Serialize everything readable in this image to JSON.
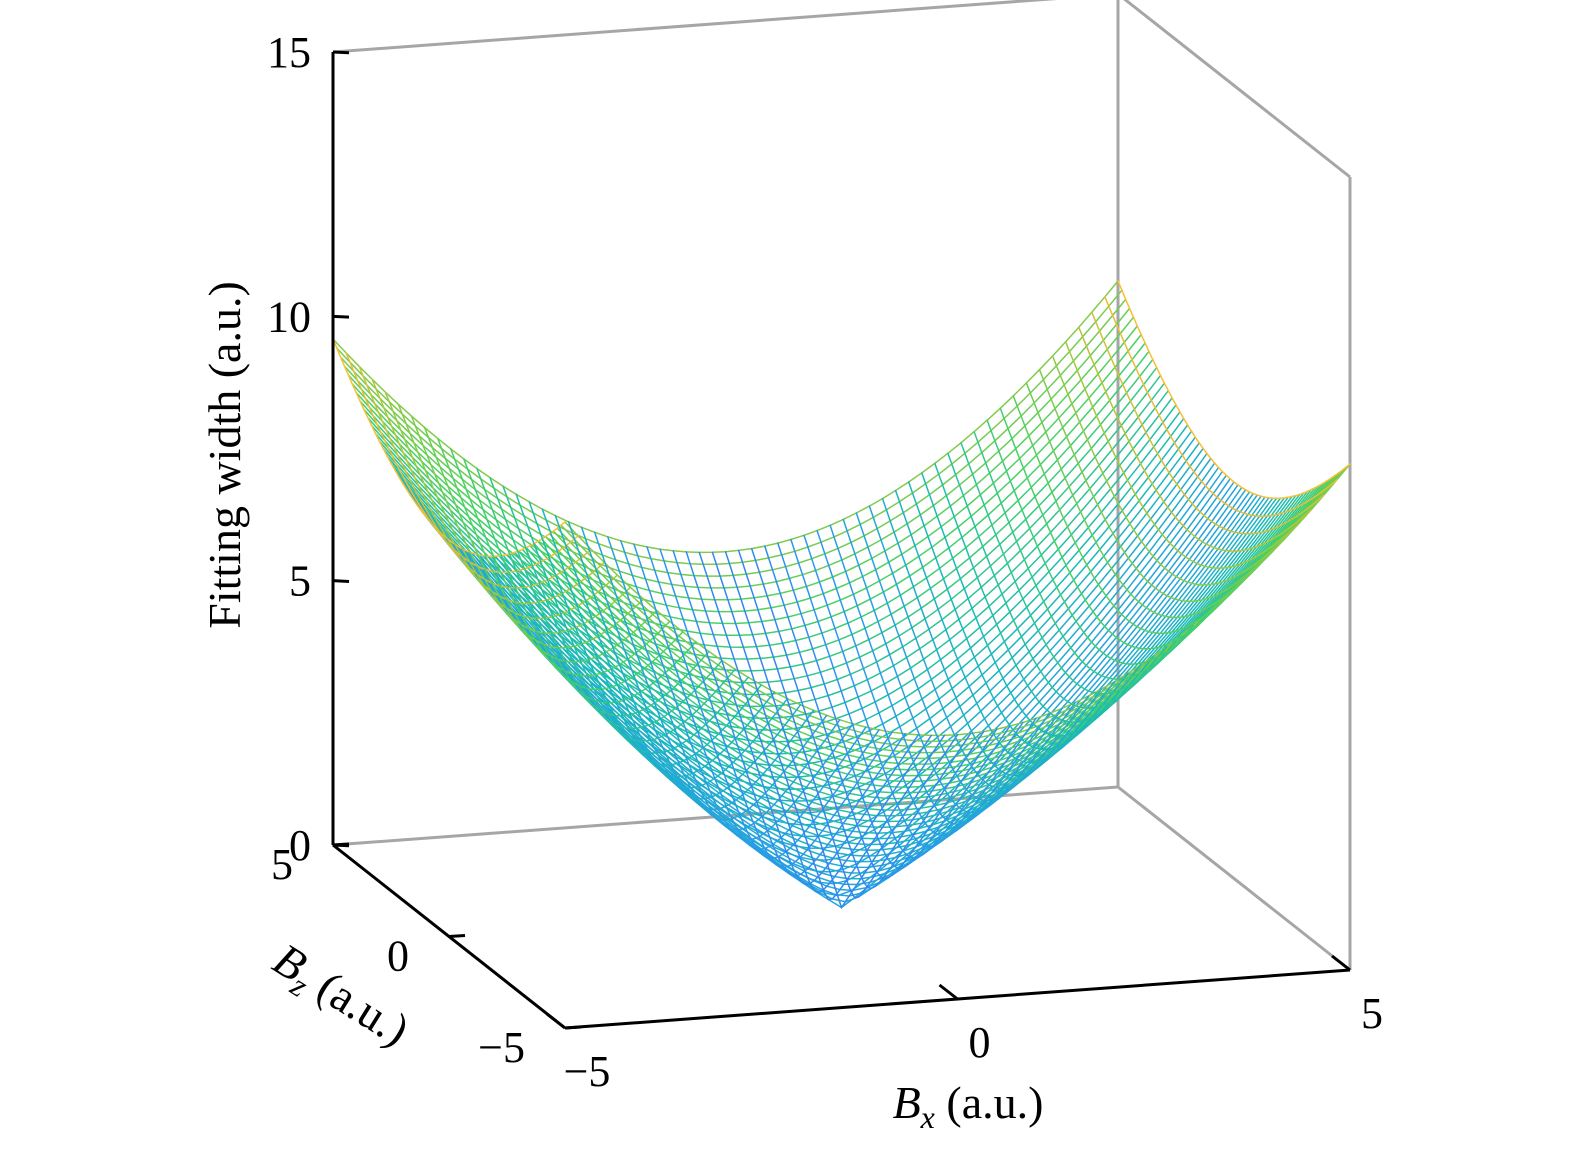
{
  "chart_data": {
    "type": "surface",
    "mesh": true,
    "colormap": "parula",
    "colors": {
      "low": "#3e26a8",
      "mid": "#35b779",
      "high": "#f9fb0e",
      "box": "#a6a6a6",
      "axis": "#000000"
    },
    "x": {
      "label_var": "B",
      "label_sub": "x",
      "label_unit": " (a.u.)",
      "lim": [
        -5,
        5
      ],
      "ticks": [
        -5,
        0,
        5
      ],
      "tick_labels": [
        "−5",
        "0",
        "5"
      ]
    },
    "y": {
      "label_var": "B",
      "label_sub": "z",
      "label_unit": " (a.u.)",
      "lim": [
        -5,
        5
      ],
      "ticks": [
        -5,
        0,
        5
      ],
      "tick_labels": [
        "−5",
        "0",
        "5"
      ]
    },
    "z": {
      "label": "Fitting width (a.u.)",
      "lim": [
        0,
        15
      ],
      "ticks": [
        0,
        5,
        10,
        15
      ],
      "tick_labels": [
        "0",
        "5",
        "10",
        "15"
      ]
    },
    "surface": {
      "function": "fitting width = sqrt(Bx^2 + Bz^2) + 0.1*Bx^2, cone-like with minimum 0 at Bx = 0, Bz = 0",
      "samples": [
        {
          "Bx": -5,
          "Bz": -5,
          "value": 9.57
        },
        {
          "Bx": 5,
          "Bz": -5,
          "value": 9.57
        },
        {
          "Bx": -5,
          "Bz": 5,
          "value": 9.57
        },
        {
          "Bx": 5,
          "Bz": 5,
          "value": 9.57
        },
        {
          "Bx": 0,
          "Bz": 0,
          "value": 0
        },
        {
          "Bx": 0,
          "Bz": 5,
          "value": 5.0
        },
        {
          "Bx": -5,
          "Bz": 0,
          "value": 7.5
        }
      ]
    }
  }
}
